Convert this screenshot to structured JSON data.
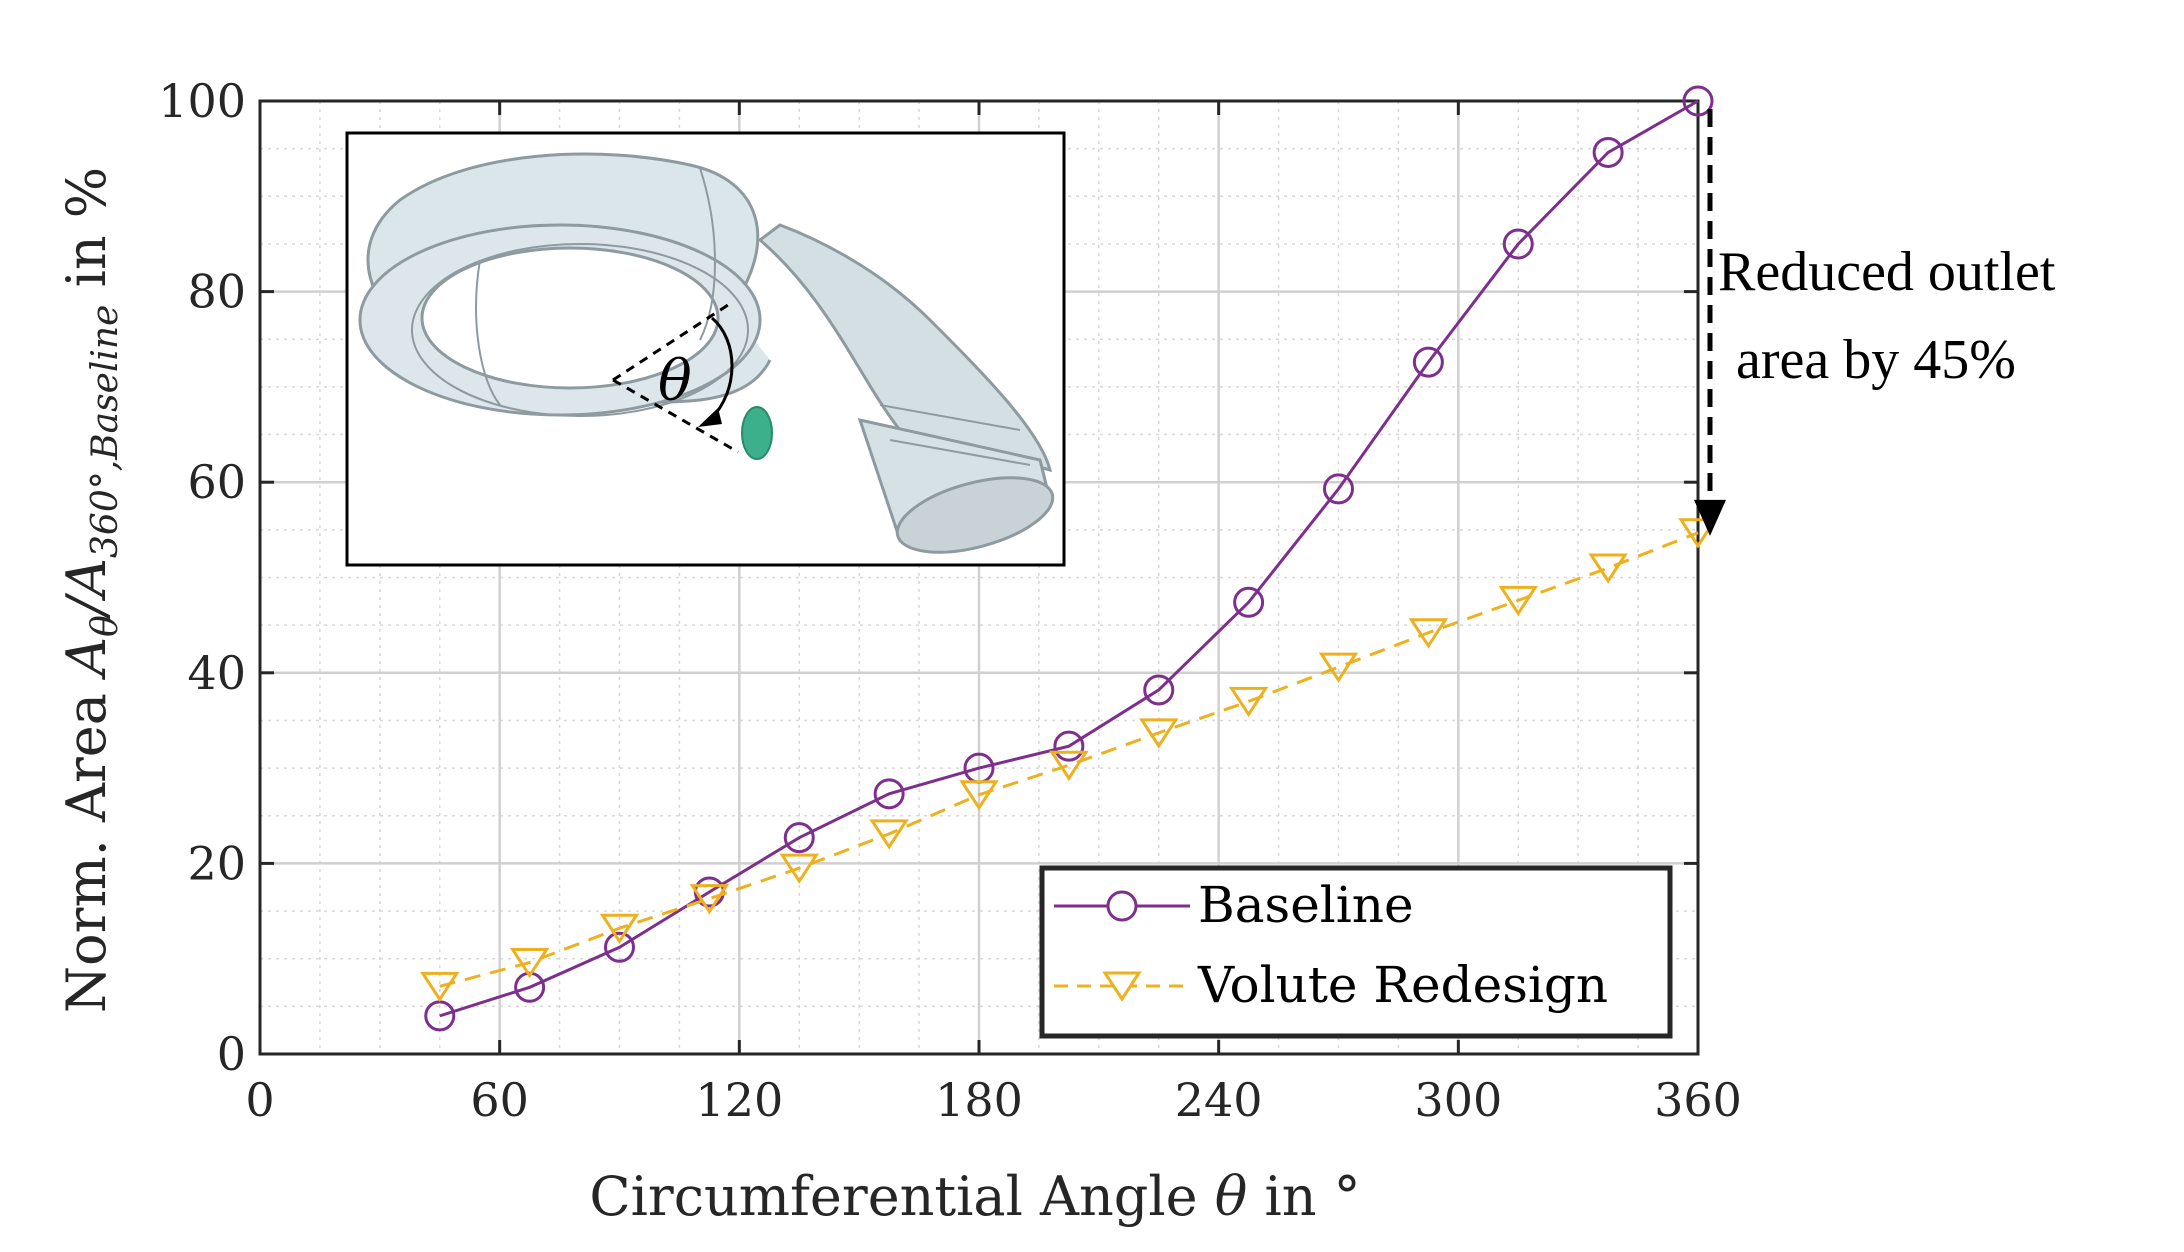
{
  "chart_data": {
    "type": "line",
    "xlabel_prefix": "Circumferential Angle ",
    "xlabel_symbol": "θ",
    "xlabel_suffix": " in °",
    "ylabel_prefix": "Norm. Area ",
    "ylabel_symbol": "A",
    "ylabel_sub1": "θ",
    "ylabel_mid": "/A",
    "ylabel_sub2": "360°,Baseline",
    "ylabel_suffix": " in %",
    "xlim": [
      0,
      360
    ],
    "ylim": [
      0,
      100
    ],
    "xticks": [
      0,
      60,
      120,
      180,
      240,
      300,
      360
    ],
    "yticks": [
      0,
      20,
      40,
      60,
      80,
      100
    ],
    "grid": true,
    "legend_position": "bottom-right",
    "series": [
      {
        "name": "Baseline",
        "color": "#7E2F8E",
        "style": "solid",
        "marker": "circle",
        "x": [
          45,
          67.5,
          90,
          112.5,
          135,
          157.5,
          180,
          202.5,
          225,
          247.5,
          270,
          292.5,
          315,
          337.5,
          360
        ],
        "y": [
          4,
          7,
          11.2,
          17,
          22.7,
          27.3,
          30,
          32.3,
          38.2,
          47.4,
          59.3,
          72.6,
          85,
          94.6,
          100
        ]
      },
      {
        "name": "Volute Redesign",
        "color": "#EDB120",
        "style": "dashed",
        "marker": "triangle-down",
        "x": [
          45,
          67.5,
          90,
          112.5,
          135,
          157.5,
          180,
          202.5,
          225,
          247.5,
          270,
          292.5,
          315,
          337.5,
          360
        ],
        "y": [
          7.1,
          9.6,
          13.2,
          16.3,
          19.5,
          23.1,
          27.2,
          30.3,
          33.7,
          37,
          40.6,
          44.2,
          47.6,
          51,
          54.7
        ]
      }
    ],
    "annotation": {
      "line1": "Reduced outlet",
      "line2": "area by 45%",
      "arrow_from": 100,
      "arrow_to": 55,
      "arrow_x": 360
    },
    "inset": {
      "label": "θ",
      "description_icon": "volute-icon"
    }
  }
}
